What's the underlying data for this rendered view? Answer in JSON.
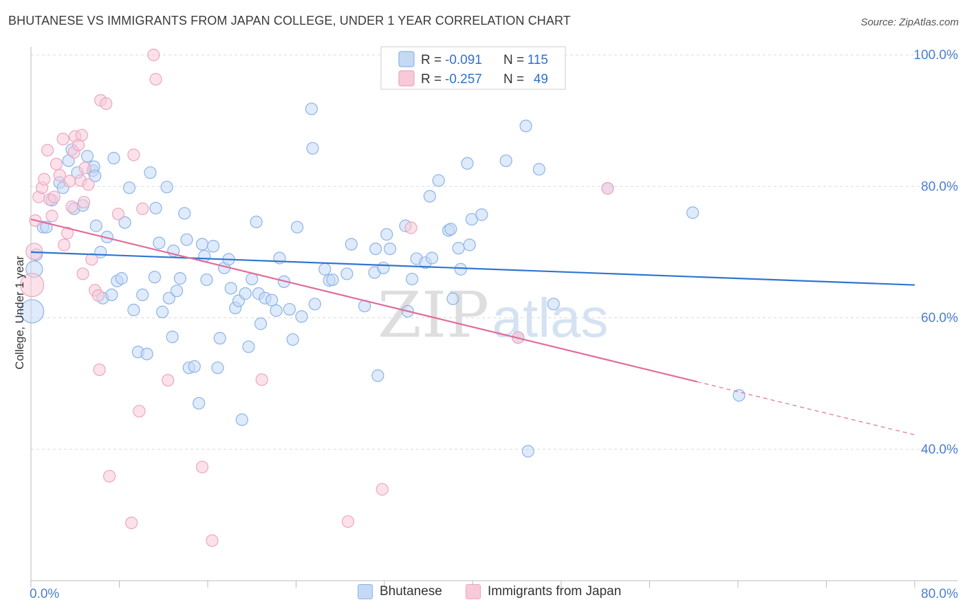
{
  "title": "BHUTANESE VS IMMIGRANTS FROM JAPAN COLLEGE, UNDER 1 YEAR CORRELATION CHART",
  "source": "Source: ZipAtlas.com",
  "watermark": {
    "zip": "ZIP",
    "atlas": "atlas"
  },
  "chart_data": {
    "type": "scatter",
    "title": "BHUTANESE VS IMMIGRANTS FROM JAPAN COLLEGE, UNDER 1 YEAR CORRELATION CHART",
    "xlabel": "",
    "ylabel": "College, Under 1 year",
    "xlim": [
      0,
      80
    ],
    "ylim": [
      20,
      100
    ],
    "x_tick_labels": [
      "0.0%",
      "80.0%"
    ],
    "y_ticks": [
      40,
      60,
      80,
      100
    ],
    "y_tick_labels": [
      "40.0%",
      "60.0%",
      "80.0%",
      "100.0%"
    ],
    "grid": true,
    "legend_placement": "top-center",
    "stats": [
      {
        "r_label": "R =",
        "r_value": "-0.091",
        "n_label": "N =",
        "n_value": "115"
      },
      {
        "r_label": "R =",
        "r_value": "-0.257",
        "n_label": "N =",
        "n_value": "49"
      }
    ],
    "series": [
      {
        "name": "Bhutanese",
        "color": "#8ab4e8",
        "fill": "#c5d9f5",
        "line_color": "#2f74d0",
        "trend": {
          "x0": 0,
          "y0": 70.0,
          "x1": 80,
          "y1": 65.0,
          "solid_until": 80
        },
        "points": [
          [
            0.1,
            61.0,
            3
          ],
          [
            0.3,
            67.4,
            2
          ],
          [
            0.5,
            69.6,
            1
          ],
          [
            1.1,
            73.8,
            1
          ],
          [
            1.4,
            73.8,
            1
          ],
          [
            1.9,
            77.9,
            1
          ],
          [
            2.6,
            80.6,
            1
          ],
          [
            2.9,
            79.8,
            1
          ],
          [
            3.4,
            83.9,
            1
          ],
          [
            3.7,
            85.6,
            1
          ],
          [
            3.9,
            76.6,
            1
          ],
          [
            4.2,
            82.1,
            1
          ],
          [
            4.7,
            77.1,
            1
          ],
          [
            5.1,
            84.6,
            1
          ],
          [
            5.6,
            82.4,
            1
          ],
          [
            5.7,
            83.0,
            1
          ],
          [
            5.9,
            74.0,
            1
          ],
          [
            6.3,
            70.0,
            1
          ],
          [
            6.5,
            63.0,
            1
          ],
          [
            6.9,
            72.3,
            1
          ],
          [
            7.3,
            63.5,
            1
          ],
          [
            7.5,
            84.3,
            1
          ],
          [
            7.8,
            65.6,
            1
          ],
          [
            8.2,
            66.0,
            1
          ],
          [
            8.5,
            74.5,
            1
          ],
          [
            8.9,
            79.8,
            1
          ],
          [
            9.3,
            61.2,
            1
          ],
          [
            9.7,
            54.8,
            1
          ],
          [
            10.1,
            63.5,
            1
          ],
          [
            10.5,
            54.5,
            1
          ],
          [
            10.8,
            82.1,
            1
          ],
          [
            11.2,
            66.2,
            1
          ],
          [
            11.3,
            76.7,
            1
          ],
          [
            11.6,
            71.4,
            1
          ],
          [
            11.9,
            60.9,
            1
          ],
          [
            12.3,
            79.9,
            1
          ],
          [
            12.5,
            63.0,
            1
          ],
          [
            12.8,
            57.1,
            1
          ],
          [
            13.2,
            64.1,
            1
          ],
          [
            13.5,
            66.0,
            1
          ],
          [
            13.9,
            75.9,
            1
          ],
          [
            14.1,
            71.9,
            1
          ],
          [
            14.3,
            52.4,
            1
          ],
          [
            14.8,
            52.6,
            1
          ],
          [
            15.2,
            47.0,
            1
          ],
          [
            15.5,
            71.2,
            1
          ],
          [
            15.7,
            69.4,
            1
          ],
          [
            15.9,
            65.8,
            1
          ],
          [
            16.5,
            70.9,
            1
          ],
          [
            16.9,
            52.4,
            1
          ],
          [
            17.1,
            56.9,
            1
          ],
          [
            17.5,
            67.6,
            1
          ],
          [
            17.9,
            68.9,
            1
          ],
          [
            18.1,
            64.5,
            1
          ],
          [
            18.5,
            61.5,
            1
          ],
          [
            18.8,
            62.6,
            1
          ],
          [
            19.1,
            44.5,
            1
          ],
          [
            19.4,
            63.7,
            1
          ],
          [
            19.7,
            55.6,
            1
          ],
          [
            20.0,
            65.9,
            1
          ],
          [
            20.4,
            74.6,
            1
          ],
          [
            20.6,
            63.7,
            1
          ],
          [
            20.8,
            59.1,
            1
          ],
          [
            21.2,
            63.0,
            1
          ],
          [
            21.8,
            62.7,
            1
          ],
          [
            22.2,
            61.1,
            1
          ],
          [
            22.5,
            69.1,
            1
          ],
          [
            22.9,
            65.5,
            1
          ],
          [
            23.4,
            61.3,
            1
          ],
          [
            23.7,
            56.7,
            1
          ],
          [
            24.1,
            73.8,
            1
          ],
          [
            24.5,
            60.2,
            1
          ],
          [
            25.4,
            91.8,
            1
          ],
          [
            25.5,
            85.8,
            1
          ],
          [
            25.7,
            62.1,
            1
          ],
          [
            26.6,
            67.4,
            1
          ],
          [
            27.0,
            65.7,
            1
          ],
          [
            27.3,
            65.8,
            1
          ],
          [
            28.6,
            66.7,
            1
          ],
          [
            29.0,
            71.2,
            1
          ],
          [
            30.2,
            61.8,
            1
          ],
          [
            31.1,
            66.9,
            1
          ],
          [
            31.2,
            70.5,
            1
          ],
          [
            31.4,
            51.2,
            1
          ],
          [
            31.9,
            67.6,
            1
          ],
          [
            32.2,
            72.7,
            1
          ],
          [
            32.5,
            70.5,
            1
          ],
          [
            33.9,
            74.0,
            1
          ],
          [
            34.1,
            61.0,
            1
          ],
          [
            34.5,
            65.9,
            1
          ],
          [
            34.9,
            69.0,
            1
          ],
          [
            35.7,
            68.4,
            1
          ],
          [
            36.1,
            78.5,
            1
          ],
          [
            36.3,
            69.1,
            1
          ],
          [
            36.9,
            80.9,
            1
          ],
          [
            37.8,
            73.3,
            1
          ],
          [
            38.0,
            73.5,
            1
          ],
          [
            38.2,
            62.9,
            1
          ],
          [
            38.7,
            70.6,
            1
          ],
          [
            38.9,
            67.4,
            1
          ],
          [
            39.5,
            83.5,
            1
          ],
          [
            39.7,
            71.1,
            1
          ],
          [
            39.9,
            75.0,
            1
          ],
          [
            40.8,
            75.7,
            1
          ],
          [
            43.0,
            83.9,
            1
          ],
          [
            44.1,
            57.0,
            1
          ],
          [
            44.8,
            89.2,
            1
          ],
          [
            45.0,
            39.7,
            1
          ],
          [
            46.0,
            82.6,
            1
          ],
          [
            47.3,
            62.1,
            1
          ],
          [
            52.2,
            79.7,
            1
          ],
          [
            59.9,
            76.0,
            1
          ],
          [
            64.1,
            48.2,
            1
          ],
          [
            5.8,
            81.6,
            1
          ],
          [
            12.9,
            70.2,
            1
          ]
        ]
      },
      {
        "name": "Immigrants from Japan",
        "color": "#eea4bf",
        "fill": "#f8cad9",
        "line_color": "#e26c9a",
        "trend": {
          "x0": 0,
          "y0": 75.0,
          "x1": 80,
          "y1": 42.2,
          "solid_until": 60.3
        },
        "points": [
          [
            0.1,
            65.0,
            3
          ],
          [
            0.3,
            70.1,
            2
          ],
          [
            0.4,
            74.8,
            1
          ],
          [
            0.7,
            78.4,
            1
          ],
          [
            1.0,
            79.8,
            1
          ],
          [
            1.2,
            81.1,
            1
          ],
          [
            1.5,
            85.5,
            1
          ],
          [
            1.7,
            78.0,
            1
          ],
          [
            1.9,
            75.5,
            1
          ],
          [
            2.1,
            78.4,
            1
          ],
          [
            2.3,
            83.4,
            1
          ],
          [
            2.6,
            81.7,
            1
          ],
          [
            2.9,
            87.2,
            1
          ],
          [
            3.0,
            71.1,
            1
          ],
          [
            3.3,
            72.9,
            1
          ],
          [
            3.5,
            80.8,
            1
          ],
          [
            3.7,
            76.9,
            1
          ],
          [
            3.9,
            85.2,
            1
          ],
          [
            4.0,
            87.6,
            1
          ],
          [
            4.3,
            86.3,
            1
          ],
          [
            4.5,
            80.9,
            1
          ],
          [
            4.6,
            87.8,
            1
          ],
          [
            4.8,
            77.6,
            1
          ],
          [
            4.9,
            82.8,
            1
          ],
          [
            4.7,
            66.7,
            1
          ],
          [
            5.2,
            80.3,
            1
          ],
          [
            5.5,
            68.9,
            1
          ],
          [
            5.8,
            64.2,
            1
          ],
          [
            6.1,
            63.4,
            1
          ],
          [
            6.2,
            52.1,
            1
          ],
          [
            6.3,
            93.1,
            1
          ],
          [
            6.8,
            92.6,
            1
          ],
          [
            7.1,
            35.9,
            1
          ],
          [
            7.9,
            75.8,
            1
          ],
          [
            9.1,
            28.8,
            1
          ],
          [
            9.3,
            84.8,
            1
          ],
          [
            9.8,
            45.8,
            1
          ],
          [
            10.1,
            76.6,
            1
          ],
          [
            11.1,
            100.0,
            1
          ],
          [
            11.3,
            96.3,
            1
          ],
          [
            12.4,
            50.5,
            1
          ],
          [
            15.5,
            37.3,
            1
          ],
          [
            16.4,
            26.1,
            1
          ],
          [
            20.9,
            50.6,
            1
          ],
          [
            28.7,
            29.0,
            1
          ],
          [
            31.8,
            33.9,
            1
          ],
          [
            34.4,
            73.7,
            1
          ],
          [
            44.1,
            57.0,
            1
          ],
          [
            52.2,
            79.7,
            1
          ]
        ]
      }
    ]
  }
}
